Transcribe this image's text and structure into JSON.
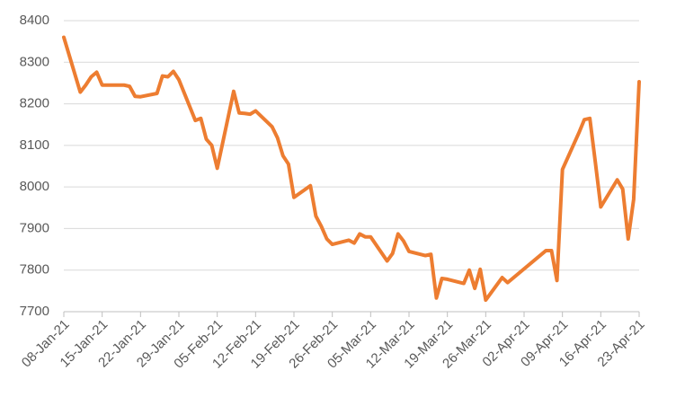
{
  "chart_data": {
    "type": "line",
    "x": [
      "2021-01-08",
      "2021-01-11",
      "2021-01-12",
      "2021-01-13",
      "2021-01-14",
      "2021-01-15",
      "2021-01-18",
      "2021-01-19",
      "2021-01-20",
      "2021-01-21",
      "2021-01-22",
      "2021-01-25",
      "2021-01-26",
      "2021-01-27",
      "2021-01-28",
      "2021-01-29",
      "2021-02-01",
      "2021-02-02",
      "2021-02-03",
      "2021-02-04",
      "2021-02-05",
      "2021-02-08",
      "2021-02-09",
      "2021-02-10",
      "2021-02-11",
      "2021-02-12",
      "2021-02-15",
      "2021-02-16",
      "2021-02-17",
      "2021-02-18",
      "2021-02-19",
      "2021-02-22",
      "2021-02-23",
      "2021-02-24",
      "2021-02-25",
      "2021-02-26",
      "2021-03-01",
      "2021-03-02",
      "2021-03-03",
      "2021-03-04",
      "2021-03-05",
      "2021-03-08",
      "2021-03-09",
      "2021-03-10",
      "2021-03-11",
      "2021-03-12",
      "2021-03-15",
      "2021-03-16",
      "2021-03-17",
      "2021-03-18",
      "2021-03-19",
      "2021-03-22",
      "2021-03-23",
      "2021-03-24",
      "2021-03-25",
      "2021-03-26",
      "2021-03-29",
      "2021-03-30",
      "2021-04-06",
      "2021-04-07",
      "2021-04-08",
      "2021-04-09",
      "2021-04-12",
      "2021-04-13",
      "2021-04-14",
      "2021-04-15",
      "2021-04-16",
      "2021-04-19",
      "2021-04-20",
      "2021-04-21",
      "2021-04-22",
      "2021-04-23"
    ],
    "series": [
      {
        "color": "#ed7d31",
        "values": [
          8360,
          8228,
          8245,
          8265,
          8276,
          8245,
          8245,
          8245,
          8242,
          8218,
          8217,
          8225,
          8267,
          8265,
          8278,
          8258,
          8160,
          8165,
          8115,
          8100,
          8045,
          8230,
          8178,
          8177,
          8175,
          8183,
          8145,
          8118,
          8075,
          8055,
          7975,
          8003,
          7930,
          7905,
          7875,
          7862,
          7872,
          7865,
          7887,
          7880,
          7880,
          7822,
          7840,
          7887,
          7870,
          7845,
          7835,
          7838,
          7733,
          7780,
          7778,
          7768,
          7800,
          7756,
          7802,
          7728,
          7782,
          7770,
          7847,
          7847,
          7775,
          8042,
          8130,
          8162,
          8165,
          8060,
          7952,
          8017,
          7995,
          7875,
          7970,
          8253
        ]
      }
    ],
    "xlim": [
      "2021-01-08",
      "2021-04-23"
    ],
    "xticks": [
      {
        "value": "2021-01-08",
        "label": "08-Jan-21"
      },
      {
        "value": "2021-01-15",
        "label": "15-Jan-21"
      },
      {
        "value": "2021-01-22",
        "label": "22-Jan-21"
      },
      {
        "value": "2021-01-29",
        "label": "29-Jan-21"
      },
      {
        "value": "2021-02-05",
        "label": "05-Feb-21"
      },
      {
        "value": "2021-02-12",
        "label": "12-Feb-21"
      },
      {
        "value": "2021-02-19",
        "label": "19-Feb-21"
      },
      {
        "value": "2021-02-26",
        "label": "26-Feb-21"
      },
      {
        "value": "2021-03-05",
        "label": "05-Mar-21"
      },
      {
        "value": "2021-03-12",
        "label": "12-Mar-21"
      },
      {
        "value": "2021-03-19",
        "label": "19-Mar-21"
      },
      {
        "value": "2021-03-26",
        "label": "26-Mar-21"
      },
      {
        "value": "2021-04-02",
        "label": "02-Apr-21"
      },
      {
        "value": "2021-04-09",
        "label": "09-Apr-21"
      },
      {
        "value": "2021-04-16",
        "label": "16-Apr-21"
      },
      {
        "value": "2021-04-23",
        "label": "23-Apr-21"
      }
    ],
    "ylim": [
      7700,
      8400
    ],
    "yticks": [
      7700,
      7800,
      7900,
      8000,
      8100,
      8200,
      8300,
      8400
    ],
    "grid": true
  }
}
